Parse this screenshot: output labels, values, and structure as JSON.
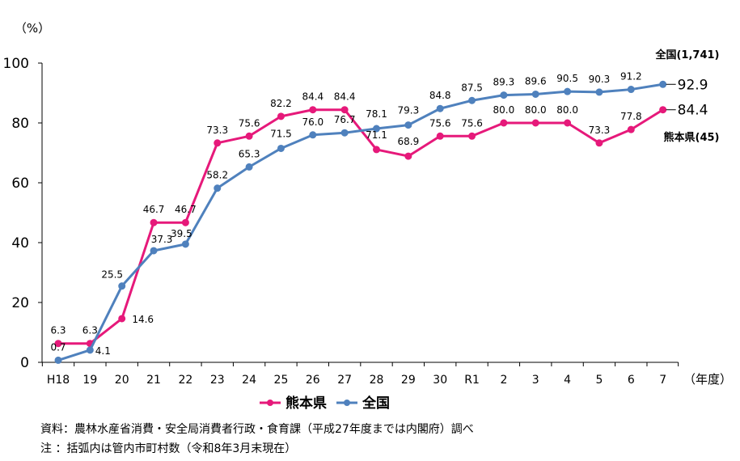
{
  "chart_data": {
    "type": "line",
    "ylabel": "（%）",
    "xunit": "（年度）",
    "ylim": [
      0,
      100
    ],
    "yticks": [
      "0",
      "20",
      "40",
      "60",
      "80",
      "100"
    ],
    "categories": [
      "H18",
      "19",
      "20",
      "21",
      "22",
      "23",
      "24",
      "25",
      "26",
      "27",
      "28",
      "29",
      "30",
      "R1",
      "2",
      "3",
      "4",
      "5",
      "6",
      "7"
    ],
    "series": [
      {
        "name": "熊本県",
        "color": "#e6197a",
        "end_label": "熊本県(45)",
        "values": [
          6.3,
          6.3,
          14.6,
          46.7,
          46.7,
          73.3,
          75.6,
          82.2,
          84.4,
          84.4,
          71.1,
          68.9,
          75.6,
          75.6,
          80.0,
          80.0,
          80.0,
          73.3,
          77.8,
          84.4
        ],
        "labels": [
          "6.3",
          "6.3",
          "14.6",
          "46.7",
          "46.7",
          "73.3",
          "75.6",
          "82.2",
          "84.4",
          "84.4",
          "71.1",
          "68.9",
          "75.6",
          "75.6",
          "80.0",
          "80.0",
          "80.0",
          "73.3",
          "77.8",
          "84.4"
        ]
      },
      {
        "name": "全国",
        "color": "#4f81bd",
        "end_label": "全国(1,741)",
        "values": [
          0.7,
          4.1,
          25.5,
          37.3,
          39.5,
          58.2,
          65.3,
          71.5,
          76.0,
          76.7,
          78.1,
          79.3,
          84.8,
          87.5,
          89.3,
          89.6,
          90.5,
          90.3,
          91.2,
          92.9
        ],
        "labels": [
          "0.7",
          "4.1",
          "25.5",
          "37.3",
          "39.5",
          "58.2",
          "65.3",
          "71.5",
          "76.0",
          "76.7",
          "78.1",
          "79.3",
          "84.8",
          "87.5",
          "89.3",
          "89.6",
          "90.5",
          "90.3",
          "91.2",
          "92.9"
        ]
      }
    ],
    "legend_position": "bottom"
  },
  "source_text": "資料：農林水産省消費・安全局消費者行政・食育課（平成27年度までは内閣府）調べ",
  "note_text": "注 ：括弧内は管内市町村数（令和8年3月末現在）"
}
